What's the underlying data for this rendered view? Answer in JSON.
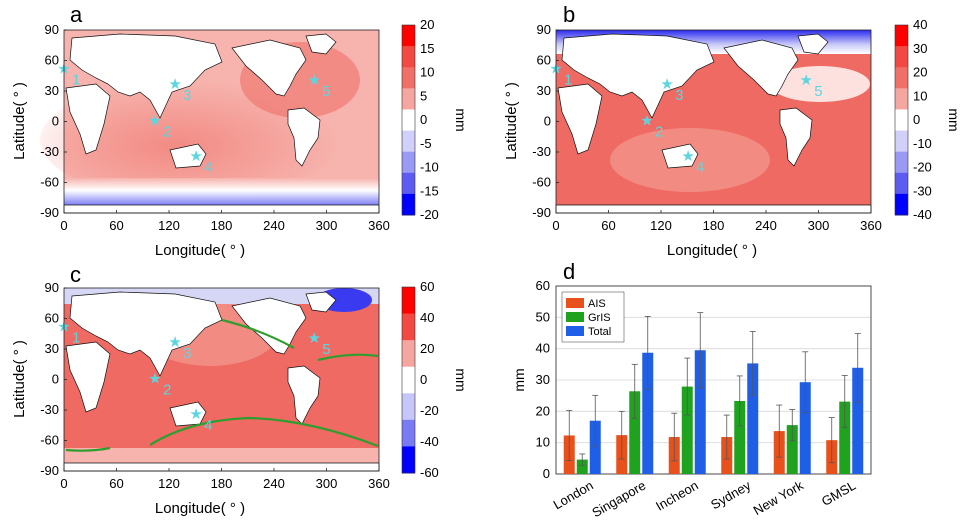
{
  "panels": [
    {
      "letter": "a",
      "xlabel": "Longitude( ° )",
      "ylabel": "Latitude( ° )",
      "xticks": [
        "0",
        "60",
        "120",
        "180",
        "240",
        "300",
        "360"
      ],
      "yticks": [
        "90",
        "60",
        "30",
        "0",
        "-30",
        "-60",
        "-90"
      ],
      "colorbar_unit": "mm",
      "colorbar_ticks": [
        "20",
        "15",
        "10",
        "5",
        "0",
        "-5",
        "-10",
        "-15",
        "-20"
      ],
      "site_labels": [
        "1",
        "2",
        "3",
        "4",
        "5"
      ]
    },
    {
      "letter": "b",
      "xlabel": "Longitude( ° )",
      "ylabel": "Latitude( ° )",
      "xticks": [
        "0",
        "60",
        "120",
        "180",
        "240",
        "300",
        "360"
      ],
      "yticks": [
        "90",
        "60",
        "30",
        "0",
        "-30",
        "-60",
        "-90"
      ],
      "colorbar_unit": "mm",
      "colorbar_ticks": [
        "40",
        "30",
        "20",
        "10",
        "0",
        "-10",
        "-20",
        "-30",
        "-40"
      ],
      "site_labels": [
        "1",
        "2",
        "3",
        "4",
        "5"
      ]
    },
    {
      "letter": "c",
      "xlabel": "Longitude( ° )",
      "ylabel": "Latitude( ° )",
      "xticks": [
        "0",
        "60",
        "120",
        "180",
        "240",
        "300",
        "360"
      ],
      "yticks": [
        "90",
        "60",
        "30",
        "0",
        "-30",
        "-60",
        "-90"
      ],
      "colorbar_unit": "mm",
      "colorbar_ticks": [
        "60",
        "40",
        "20",
        "0",
        "-20",
        "-40",
        "-60"
      ],
      "site_labels": [
        "1",
        "2",
        "3",
        "4",
        "5"
      ]
    }
  ],
  "palette": {
    "ais": "#E8501C",
    "gris": "#1FA31F",
    "total": "#1F5FE8",
    "ocean_light": "#F7B3AD",
    "ocean_mid": "#F28C83",
    "ocean_dark": "#EE6A62",
    "site_marker": "#5BD6E0",
    "contour": "#2E9E2E"
  },
  "chart_data": {
    "type": "bar",
    "panel_letter": "d",
    "ylabel": "mm",
    "ylim": [
      0,
      60
    ],
    "yticks": [
      "0",
      "10",
      "20",
      "30",
      "40",
      "50",
      "60"
    ],
    "grid": true,
    "legend_position": "top-left",
    "categories": [
      "London",
      "Singapore",
      "Incheon",
      "Sydney",
      "New York",
      "GMSL"
    ],
    "series": [
      {
        "name": "AIS",
        "values": [
          12.3,
          12.4,
          11.8,
          11.8,
          13.7,
          10.8
        ],
        "err": [
          8.0,
          7.6,
          7.6,
          7.0,
          8.3,
          7.2
        ]
      },
      {
        "name": "GrIS",
        "values": [
          4.6,
          26.4,
          27.9,
          23.3,
          15.6,
          23.1
        ],
        "err": [
          1.8,
          8.6,
          9.1,
          8.0,
          5.0,
          8.3
        ]
      },
      {
        "name": "Total",
        "values": [
          17.0,
          38.7,
          39.5,
          35.3,
          29.3,
          33.9
        ],
        "err": [
          8.1,
          11.6,
          12.0,
          10.2,
          9.7,
          10.9
        ]
      }
    ]
  }
}
